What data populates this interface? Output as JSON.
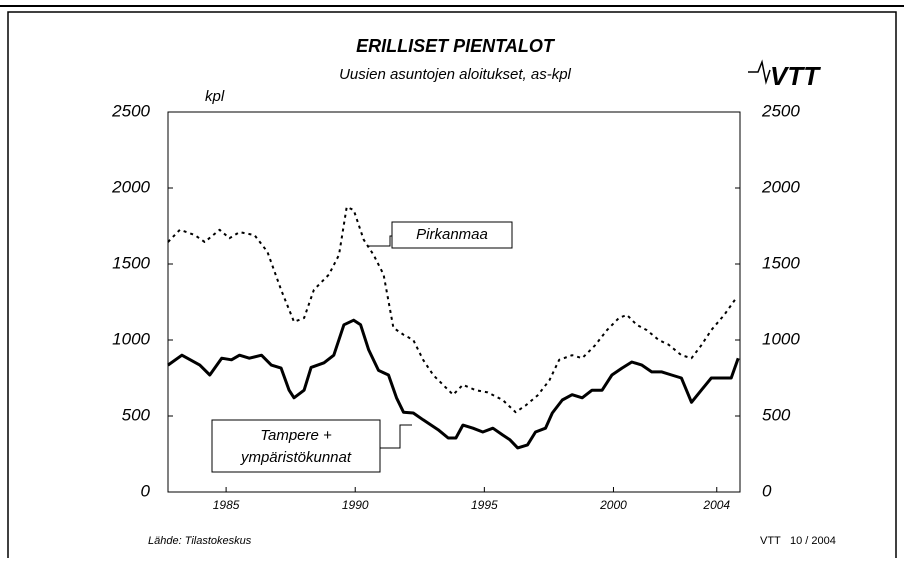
{
  "chart_data": {
    "type": "line",
    "title": "ERILLISET PIENTALOT",
    "subtitle": "Uusien asuntojen aloitukset, as-kpl",
    "y_label": "kpl",
    "logo": "VTT",
    "source": "Lähde: Tilastokeskus",
    "footer": [
      "VTT",
      "10 / 2004"
    ],
    "xlim": [
      1982.75,
      2004.9
    ],
    "xticks": [
      1985,
      1990,
      1995,
      2000,
      2004
    ],
    "ylim": [
      0,
      2500
    ],
    "yticks": [
      0,
      500,
      1000,
      1500,
      2000,
      2500
    ],
    "series": [
      {
        "name": "Pirkanmaa",
        "color": "#000000",
        "dash": "dotted",
        "x": [
          1982.75,
          1983.21,
          1983.79,
          1984.17,
          1984.75,
          1985.13,
          1985.52,
          1986.1,
          1986.6,
          1987.13,
          1987.63,
          1988.02,
          1988.4,
          1988.98,
          1989.37,
          1989.67,
          1989.94,
          1990.33,
          1990.71,
          1991.1,
          1991.48,
          1991.87,
          1992.25,
          1992.63,
          1993.02,
          1993.4,
          1993.79,
          1994.17,
          1994.67,
          1995.13,
          1995.71,
          1996.21,
          1996.6,
          1997.06,
          1997.52,
          1997.9,
          1998.4,
          1998.79,
          1999.29,
          1999.75,
          2000.21,
          2000.52,
          2000.9,
          2001.29,
          2001.75,
          2002.13,
          2002.63,
          2003.02,
          2003.4,
          2003.79,
          2004.29,
          2004.75
        ],
        "values": [
          1645,
          1725,
          1690,
          1645,
          1725,
          1670,
          1710,
          1690,
          1580,
          1330,
          1120,
          1145,
          1330,
          1430,
          1560,
          1875,
          1855,
          1660,
          1560,
          1430,
          1080,
          1035,
          1000,
          870,
          770,
          705,
          640,
          705,
          670,
          655,
          605,
          525,
          570,
          635,
          735,
          870,
          900,
          880,
          965,
          1065,
          1145,
          1165,
          1100,
          1065,
          1000,
          970,
          900,
          880,
          965,
          1065,
          1165,
          1275
        ]
      },
      {
        "name": [
          "Tampere +",
          "ympäristökunnat"
        ],
        "color": "#000000",
        "dash": "solid",
        "x": [
          1982.75,
          1983.29,
          1983.98,
          1984.37,
          1984.83,
          1985.21,
          1985.52,
          1985.9,
          1986.37,
          1986.75,
          1987.13,
          1987.44,
          1987.63,
          1988.02,
          1988.29,
          1988.79,
          1989.17,
          1989.56,
          1989.94,
          1990.21,
          1990.52,
          1990.9,
          1991.29,
          1991.6,
          1991.87,
          1992.25,
          1992.63,
          1993.21,
          1993.6,
          1993.9,
          1994.17,
          1994.56,
          1994.94,
          1995.33,
          1995.71,
          1995.98,
          1996.29,
          1996.67,
          1996.98,
          1997.37,
          1997.63,
          1998.02,
          1998.4,
          1998.79,
          1999.17,
          1999.56,
          1999.94,
          2000.33,
          2000.71,
          2001.1,
          2001.48,
          2001.87,
          2002.25,
          2002.63,
          2003.02,
          2003.4,
          2003.79,
          2004.17,
          2004.56,
          2004.83
        ],
        "values": [
          835,
          900,
          835,
          770,
          880,
          870,
          900,
          880,
          900,
          835,
          815,
          670,
          620,
          670,
          820,
          850,
          900,
          1100,
          1130,
          1100,
          935,
          800,
          770,
          620,
          525,
          520,
          475,
          410,
          355,
          355,
          440,
          420,
          395,
          420,
          375,
          345,
          290,
          310,
          395,
          420,
          520,
          605,
          640,
          620,
          670,
          670,
          770,
          815,
          855,
          835,
          790,
          790,
          770,
          750,
          590,
          670,
          750,
          750,
          750,
          880
        ]
      }
    ]
  }
}
